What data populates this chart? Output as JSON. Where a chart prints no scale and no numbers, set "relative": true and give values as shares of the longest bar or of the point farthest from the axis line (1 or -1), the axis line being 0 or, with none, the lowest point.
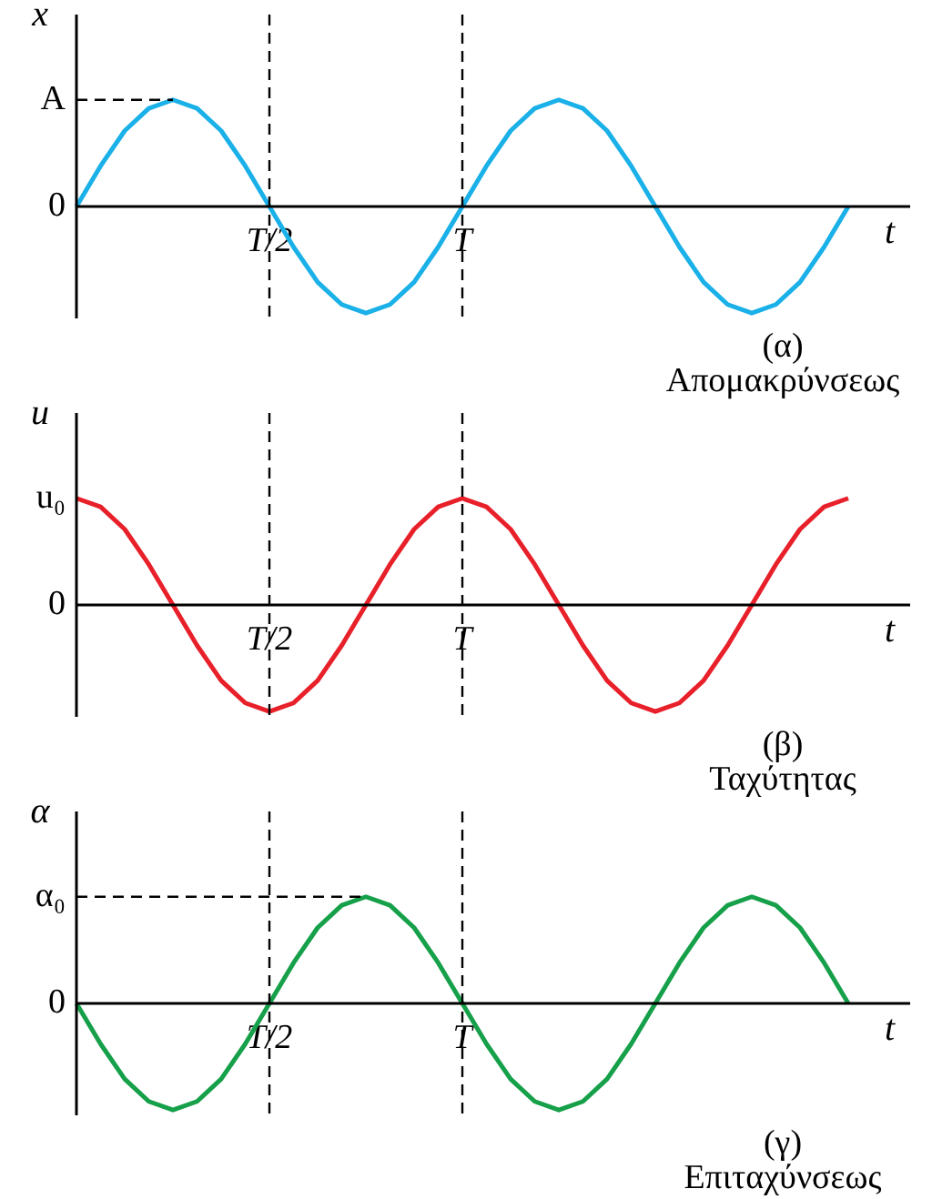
{
  "chart_data": [
    {
      "type": "line",
      "relative": true,
      "ylabel": "x",
      "xlabel": "t",
      "marker": "none",
      "grid": "x",
      "annotations": [
        "A",
        "0",
        "(α)",
        "Απομακρύνσεως"
      ],
      "categories": [
        null,
        null,
        null,
        null,
        null,
        null,
        null,
        null,
        "T/2",
        null,
        null,
        null,
        null,
        null,
        null,
        null,
        "T",
        null,
        null,
        null,
        null,
        null,
        null,
        null,
        null,
        null,
        null,
        null,
        null,
        null,
        null,
        null,
        null
      ],
      "series": [
        {
          "color": "#1ab0e8",
          "values": [
            0,
            0.38,
            0.71,
            0.92,
            1,
            0.92,
            0.71,
            0.38,
            0,
            -0.38,
            -0.71,
            -0.92,
            -1,
            -0.92,
            -0.71,
            -0.38,
            0,
            0.38,
            0.71,
            0.92,
            1,
            0.92,
            0.71,
            0.38,
            0,
            -0.38,
            -0.71,
            -0.92,
            -1,
            -0.92,
            -0.71,
            -0.38,
            0
          ]
        }
      ],
      "line_style": "solid"
    },
    {
      "type": "line",
      "relative": true,
      "ylabel": "u",
      "xlabel": "t",
      "marker": "none",
      "grid": "x",
      "annotations": [
        "u₀",
        "0",
        "(β)",
        "Ταχύτητας"
      ],
      "categories": [
        null,
        null,
        null,
        null,
        null,
        null,
        null,
        null,
        "T/2",
        null,
        null,
        null,
        null,
        null,
        null,
        null,
        "T",
        null,
        null,
        null,
        null,
        null,
        null,
        null,
        null,
        null,
        null,
        null,
        null,
        null,
        null,
        null,
        null
      ],
      "series": [
        {
          "color": "#e8202a",
          "values": [
            1,
            0.92,
            0.71,
            0.38,
            0,
            -0.38,
            -0.71,
            -0.92,
            -1,
            -0.92,
            -0.71,
            -0.38,
            0,
            0.38,
            0.71,
            0.92,
            1,
            0.92,
            0.71,
            0.38,
            0,
            -0.38,
            -0.71,
            -0.92,
            -1,
            -0.92,
            -0.71,
            -0.38,
            0,
            0.38,
            0.71,
            0.92,
            1
          ]
        }
      ],
      "line_style": "solid"
    },
    {
      "type": "line",
      "relative": true,
      "ylabel": "α",
      "xlabel": "t",
      "marker": "none",
      "grid": "x",
      "annotations": [
        "α₀",
        "0",
        "(γ)",
        "Επιταχύνσεως"
      ],
      "categories": [
        null,
        null,
        null,
        null,
        null,
        null,
        null,
        null,
        "T/2",
        null,
        null,
        null,
        null,
        null,
        null,
        null,
        "T",
        null,
        null,
        null,
        null,
        null,
        null,
        null,
        null,
        null,
        null,
        null,
        null,
        null,
        null,
        null,
        null
      ],
      "series": [
        {
          "color": "#16a04a",
          "values": [
            0,
            -0.38,
            -0.71,
            -0.92,
            -1,
            -0.92,
            -0.71,
            -0.38,
            0,
            0.38,
            0.71,
            0.92,
            1,
            0.92,
            0.71,
            0.38,
            0,
            -0.38,
            -0.71,
            -0.92,
            -1,
            -0.92,
            -0.71,
            -0.38,
            0,
            0.38,
            0.71,
            0.92,
            1,
            0.92,
            0.71,
            0.38,
            0
          ]
        }
      ],
      "line_style": "solid"
    }
  ]
}
